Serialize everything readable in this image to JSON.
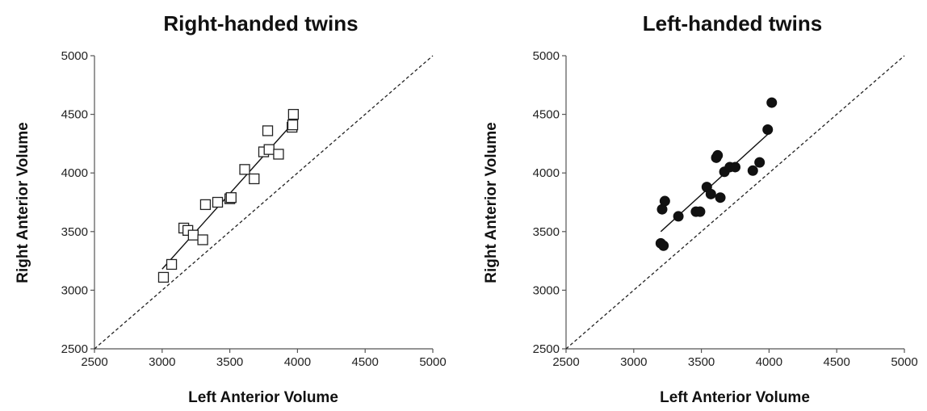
{
  "chart_data": [
    {
      "type": "scatter",
      "title": "Right-handed twins",
      "xlabel": "Left Anterior Volume",
      "ylabel": "Right Anterior Volume",
      "xlim": [
        2500,
        5000
      ],
      "ylim": [
        2500,
        5000
      ],
      "xticks": [
        "2500",
        "3000",
        "3500",
        "4000",
        "4500",
        "5000"
      ],
      "yticks": [
        "2500",
        "3000",
        "3500",
        "4000",
        "4500",
        "5000"
      ],
      "marker": "open-square",
      "identity_line": true,
      "grid": false,
      "fit_line": {
        "x": [
          3000,
          3970
        ],
        "y": [
          3180,
          4430
        ]
      },
      "points": {
        "x": [
          3010,
          3070,
          3160,
          3190,
          3230,
          3300,
          3320,
          3410,
          3500,
          3510,
          3610,
          3680,
          3750,
          3780,
          3790,
          3860,
          3960,
          3965,
          3970
        ],
        "y": [
          3110,
          3220,
          3530,
          3510,
          3470,
          3430,
          3730,
          3750,
          3780,
          3790,
          4030,
          3950,
          4180,
          4360,
          4200,
          4160,
          4390,
          4410,
          4500
        ]
      }
    },
    {
      "type": "scatter",
      "title": "Left-handed twins",
      "xlabel": "Left Anterior Volume",
      "ylabel": "Right Anterior Volume",
      "xlim": [
        2500,
        5000
      ],
      "ylim": [
        2500,
        5000
      ],
      "xticks": [
        "2500",
        "3000",
        "3500",
        "4000",
        "4500",
        "5000"
      ],
      "yticks": [
        "2500",
        "3000",
        "3500",
        "4000",
        "4500",
        "5000"
      ],
      "marker": "filled-circle",
      "identity_line": true,
      "grid": false,
      "fit_line": {
        "x": [
          3200,
          4000
        ],
        "y": [
          3500,
          4340
        ]
      },
      "points": {
        "x": [
          3200,
          3220,
          3210,
          3230,
          3330,
          3460,
          3490,
          3540,
          3570,
          3610,
          3620,
          3640,
          3670,
          3710,
          3750,
          3880,
          3930,
          3990,
          4020
        ],
        "y": [
          3400,
          3380,
          3690,
          3760,
          3630,
          3670,
          3670,
          3880,
          3820,
          4130,
          4150,
          3790,
          4010,
          4050,
          4050,
          4020,
          4090,
          4370,
          4600
        ]
      }
    }
  ]
}
